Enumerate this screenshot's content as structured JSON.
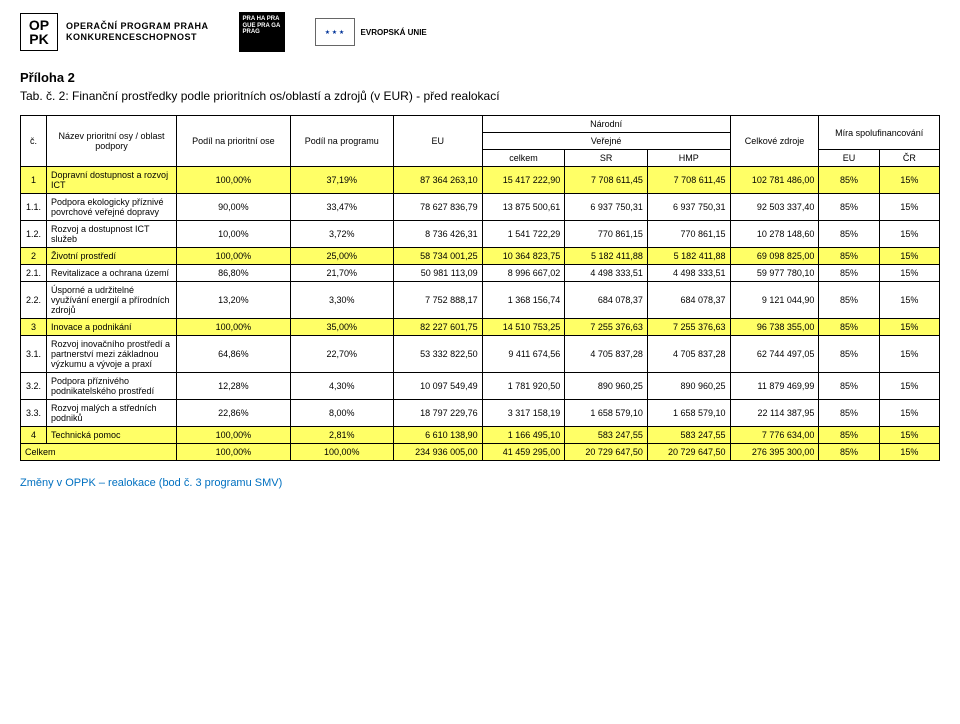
{
  "logos": {
    "oppk_letters_top": "OP",
    "oppk_letters_bottom": "PK",
    "oppk_line1": "OPERAČNÍ PROGRAM PRAHA",
    "oppk_line2": "KONKURENCESCHOPNOST",
    "praha": "PRA HA\nPRA GUE\nPRA GA\nPRAG",
    "eu_stars": "★ ★ ★",
    "eu_label": "EVROPSKÁ UNIE"
  },
  "title": "Příloha 2",
  "subtitle": "Tab. č. 2: Finanční prostředky podle prioritních os/oblastí a zdrojů (v EUR) - před realokací",
  "headers": {
    "c": "č.",
    "name": "Název prioritní osy / oblast podpory",
    "podil_osa": "Podíl na prioritní ose",
    "podil_prog": "Podíl na programu",
    "eu": "EU",
    "narodni": "Národní",
    "verejne": "Veřejné",
    "celkem": "celkem",
    "sr": "SR",
    "hmp": "HMP",
    "celk_zdroje": "Celkové zdroje",
    "mira": "Míra spolufinancování",
    "eu2": "EU",
    "cr": "ČR"
  },
  "rows": [
    {
      "id": "1",
      "hl": true,
      "name": "Dopravní dostupnost a rozvoj ICT",
      "osa": "100,00%",
      "prog": "37,19%",
      "eu": "87 364 263,10",
      "celkem": "15 417 222,90",
      "sr": "7 708 611,45",
      "hmp": "7 708 611,45",
      "celk": "102 781 486,00",
      "meu": "85%",
      "mcr": "15%"
    },
    {
      "id": "1.1.",
      "name": "Podpora ekologicky příznivé povrchové veřejné dopravy",
      "osa": "90,00%",
      "prog": "33,47%",
      "eu": "78 627 836,79",
      "celkem": "13 875 500,61",
      "sr": "6 937 750,31",
      "hmp": "6 937 750,31",
      "celk": "92 503 337,40",
      "meu": "85%",
      "mcr": "15%"
    },
    {
      "id": "1.2.",
      "name": "Rozvoj a dostupnost ICT služeb",
      "osa": "10,00%",
      "prog": "3,72%",
      "eu": "8 736 426,31",
      "celkem": "1 541 722,29",
      "sr": "770 861,15",
      "hmp": "770 861,15",
      "celk": "10 278 148,60",
      "meu": "85%",
      "mcr": "15%"
    },
    {
      "id": "2",
      "hl": true,
      "name": "Životní prostředí",
      "osa": "100,00%",
      "prog": "25,00%",
      "eu": "58 734 001,25",
      "celkem": "10 364 823,75",
      "sr": "5 182 411,88",
      "hmp": "5 182 411,88",
      "celk": "69 098 825,00",
      "meu": "85%",
      "mcr": "15%"
    },
    {
      "id": "2.1.",
      "name": "Revitalizace a ochrana území",
      "osa": "86,80%",
      "prog": "21,70%",
      "eu": "50 981 113,09",
      "celkem": "8 996 667,02",
      "sr": "4 498 333,51",
      "hmp": "4 498 333,51",
      "celk": "59 977 780,10",
      "meu": "85%",
      "mcr": "15%"
    },
    {
      "id": "2.2.",
      "name": "Úsporné a udržitelné využívání energií a přírodních zdrojů",
      "osa": "13,20%",
      "prog": "3,30%",
      "eu": "7 752 888,17",
      "celkem": "1 368 156,74",
      "sr": "684 078,37",
      "hmp": "684 078,37",
      "celk": "9 121 044,90",
      "meu": "85%",
      "mcr": "15%"
    },
    {
      "id": "3",
      "hl": true,
      "name": "Inovace a podnikání",
      "osa": "100,00%",
      "prog": "35,00%",
      "eu": "82 227 601,75",
      "celkem": "14 510 753,25",
      "sr": "7 255 376,63",
      "hmp": "7 255 376,63",
      "celk": "96 738 355,00",
      "meu": "85%",
      "mcr": "15%"
    },
    {
      "id": "3.1.",
      "name": "Rozvoj inovačního prostředí a partnerství mezi základnou výzkumu a vývoje a praxí",
      "osa": "64,86%",
      "prog": "22,70%",
      "eu": "53 332 822,50",
      "celkem": "9 411 674,56",
      "sr": "4 705 837,28",
      "hmp": "4 705 837,28",
      "celk": "62 744 497,05",
      "meu": "85%",
      "mcr": "15%"
    },
    {
      "id": "3.2.",
      "name": "Podpora příznivého podnikatelského prostředí",
      "osa": "12,28%",
      "prog": "4,30%",
      "eu": "10 097 549,49",
      "celkem": "1 781 920,50",
      "sr": "890 960,25",
      "hmp": "890 960,25",
      "celk": "11 879 469,99",
      "meu": "85%",
      "mcr": "15%"
    },
    {
      "id": "3.3.",
      "name": "Rozvoj malých a středních podniků",
      "osa": "22,86%",
      "prog": "8,00%",
      "eu": "18 797 229,76",
      "celkem": "3 317 158,19",
      "sr": "1 658 579,10",
      "hmp": "1 658 579,10",
      "celk": "22 114 387,95",
      "meu": "85%",
      "mcr": "15%"
    },
    {
      "id": "4",
      "hl": true,
      "name": "Technická pomoc",
      "osa": "100,00%",
      "prog": "2,81%",
      "eu": "6 610 138,90",
      "celkem": "1 166 495,10",
      "sr": "583 247,55",
      "hmp": "583 247,55",
      "celk": "7 776 634,00",
      "meu": "85%",
      "mcr": "15%"
    },
    {
      "id": "Celkem",
      "hl": true,
      "name": "",
      "total": true,
      "osa": "100,00%",
      "prog": "100,00%",
      "eu": "234 936 005,00",
      "celkem": "41 459 295,00",
      "sr": "20 729 647,50",
      "hmp": "20 729 647,50",
      "celk": "276 395 300,00",
      "meu": "85%",
      "mcr": "15%"
    }
  ],
  "footer": "Změny v OPPK – realokace (bod č. 3 programu SMV)",
  "style": {
    "highlight_bg": "#ffff66",
    "font_size_table": 9,
    "font_family": "Arial",
    "text_color": "#000000",
    "footer_color": "#0070c0"
  }
}
